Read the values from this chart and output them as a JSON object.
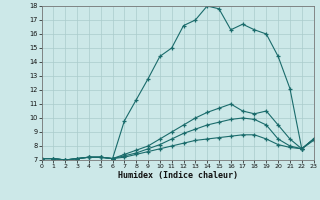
{
  "xlabel": "Humidex (Indice chaleur)",
  "bg_color": "#cce8e8",
  "line_color": "#1a6b6b",
  "grid_color": "#aacccc",
  "ylim": [
    7,
    18
  ],
  "xlim": [
    0,
    23
  ],
  "yticks": [
    7,
    8,
    9,
    10,
    11,
    12,
    13,
    14,
    15,
    16,
    17,
    18
  ],
  "xticks": [
    0,
    1,
    2,
    3,
    4,
    5,
    6,
    7,
    8,
    9,
    10,
    11,
    12,
    13,
    14,
    15,
    16,
    17,
    18,
    19,
    20,
    21,
    22,
    23
  ],
  "line1_y": [
    7.1,
    7.1,
    7.0,
    7.1,
    7.2,
    7.2,
    7.1,
    9.8,
    11.3,
    12.8,
    14.4,
    15.0,
    16.6,
    17.0,
    18.0,
    17.8,
    16.3,
    16.7,
    16.3,
    16.0,
    14.4,
    12.1,
    7.8,
    8.5
  ],
  "line2_y": [
    7.1,
    7.1,
    7.0,
    7.1,
    7.2,
    7.2,
    7.1,
    7.4,
    7.7,
    8.0,
    8.5,
    9.0,
    9.5,
    10.0,
    10.4,
    10.7,
    11.0,
    10.5,
    10.3,
    10.5,
    9.5,
    8.5,
    7.8,
    8.5
  ],
  "line3_y": [
    7.1,
    7.1,
    7.0,
    7.1,
    7.2,
    7.2,
    7.1,
    7.3,
    7.5,
    7.8,
    8.1,
    8.5,
    8.9,
    9.2,
    9.5,
    9.7,
    9.9,
    10.0,
    9.9,
    9.5,
    8.5,
    8.0,
    7.8,
    8.5
  ],
  "line4_y": [
    7.1,
    7.1,
    7.0,
    7.1,
    7.2,
    7.2,
    7.1,
    7.2,
    7.4,
    7.6,
    7.8,
    8.0,
    8.2,
    8.4,
    8.5,
    8.6,
    8.7,
    8.8,
    8.8,
    8.5,
    8.1,
    7.9,
    7.8,
    8.4
  ]
}
